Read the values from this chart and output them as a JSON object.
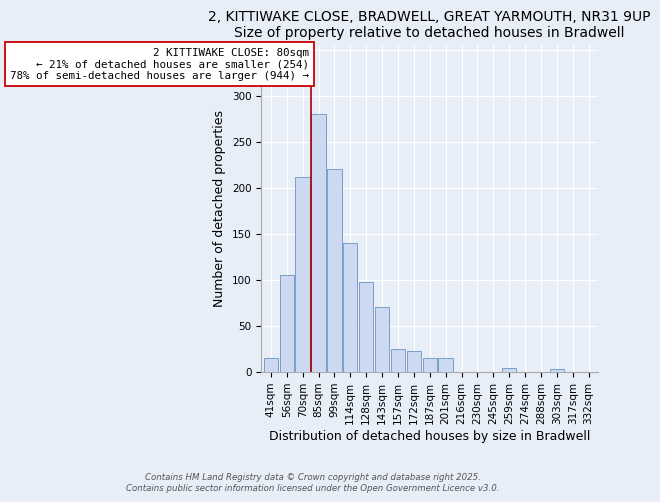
{
  "title": "2, KITTIWAKE CLOSE, BRADWELL, GREAT YARMOUTH, NR31 9UP",
  "subtitle": "Size of property relative to detached houses in Bradwell",
  "xlabel": "Distribution of detached houses by size in Bradwell",
  "ylabel": "Number of detached properties",
  "categories": [
    "41sqm",
    "56sqm",
    "70sqm",
    "85sqm",
    "99sqm",
    "114sqm",
    "128sqm",
    "143sqm",
    "157sqm",
    "172sqm",
    "187sqm",
    "201sqm",
    "216sqm",
    "230sqm",
    "245sqm",
    "259sqm",
    "274sqm",
    "288sqm",
    "303sqm",
    "317sqm",
    "332sqm"
  ],
  "values": [
    15,
    105,
    212,
    280,
    220,
    140,
    97,
    70,
    25,
    22,
    15,
    15,
    0,
    0,
    0,
    4,
    0,
    0,
    3,
    0,
    0
  ],
  "bar_color": "#ccd9f0",
  "bar_edge_color": "#7a9fc7",
  "vline_color": "#aa0000",
  "annotation_line1": "2 KITTIWAKE CLOSE: 80sqm",
  "annotation_line2": "← 21% of detached houses are smaller (254)",
  "annotation_line3": "78% of semi-detached houses are larger (944) →",
  "annotation_box_color": "white",
  "annotation_box_edge": "#cc0000",
  "ylim": [
    0,
    355
  ],
  "yticks": [
    0,
    50,
    100,
    150,
    200,
    250,
    300,
    350
  ],
  "footer1": "Contains HM Land Registry data © Crown copyright and database right 2025.",
  "footer2": "Contains public sector information licensed under the Open Government Licence v3.0.",
  "bg_color": "#e8eef8",
  "grid_color": "#ffffff",
  "title_fontsize": 10,
  "label_fontsize": 9,
  "tick_fontsize": 7.5,
  "ann_fontsize": 7.8,
  "footer_fontsize": 6.2
}
